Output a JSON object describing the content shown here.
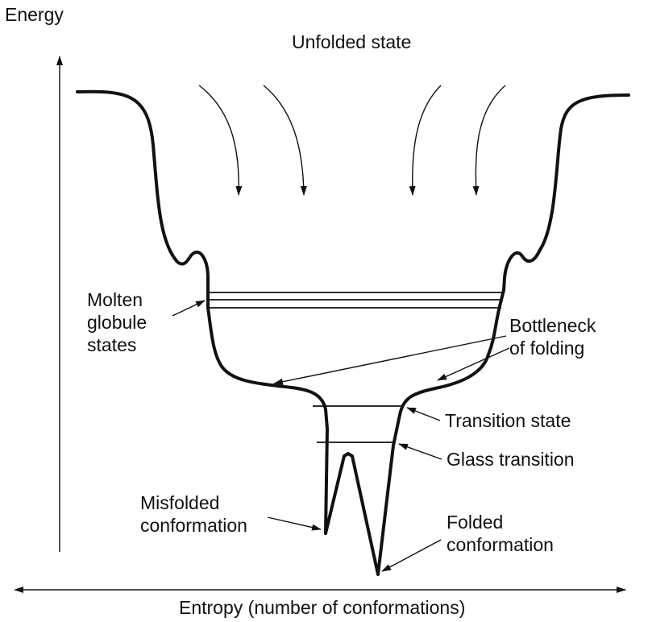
{
  "axes": {
    "y_label": "Energy",
    "x_label": "Entropy (number of conformations)"
  },
  "labels": {
    "unfolded_state": "Unfolded state",
    "molten_globule": [
      "Molten",
      "globule",
      "states"
    ],
    "bottleneck": [
      "Bottleneck",
      "of folding"
    ],
    "transition_state": "Transition state",
    "glass_transition": "Glass transition",
    "misfolded": [
      "Misfolded",
      "conformation"
    ],
    "folded": [
      "Folded",
      "conformation"
    ]
  }
}
